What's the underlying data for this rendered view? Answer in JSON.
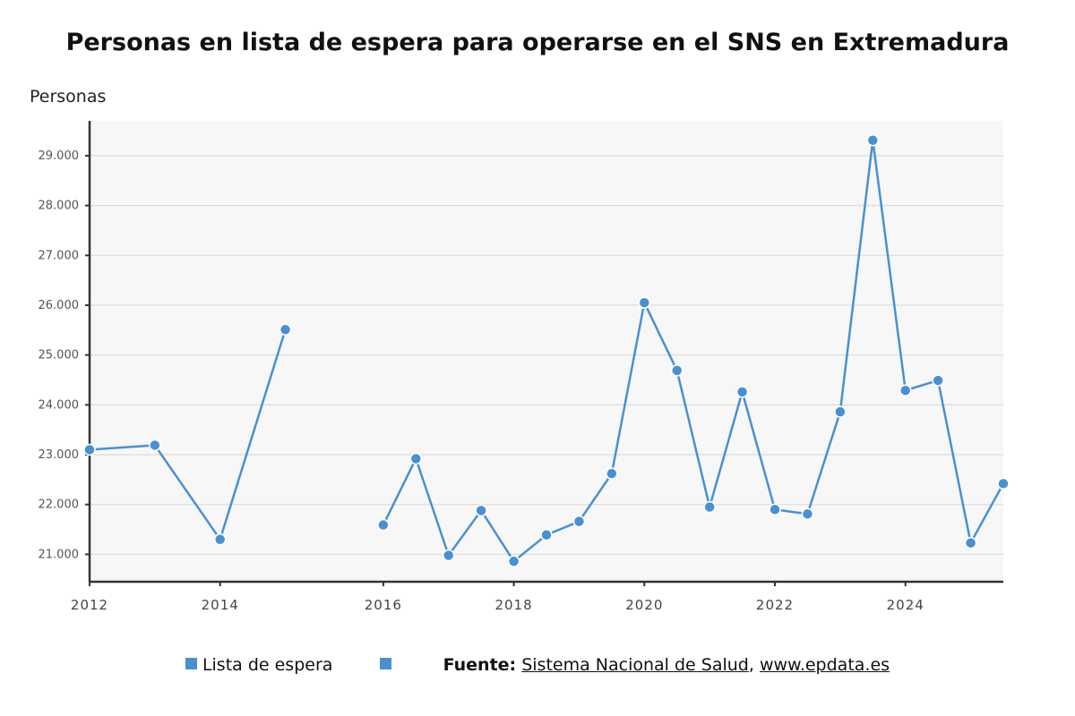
{
  "chart_data": {
    "type": "line",
    "title": "Personas en lista de espera para operarse en el SNS en Extremadura",
    "ylabel": "Personas",
    "xlabel": "",
    "ylim": [
      20450,
      29700
    ],
    "yticks": [
      21000,
      22000,
      23000,
      24000,
      25000,
      26000,
      27000,
      28000,
      29000
    ],
    "ytick_labels": [
      "21.000",
      "22.000",
      "23.000",
      "24.000",
      "25.000",
      "26.000",
      "27.000",
      "28.000",
      "29.000"
    ],
    "grid": true,
    "categories": [
      "2012",
      "",
      "",
      "",
      "2014",
      "",
      "",
      "",
      "",
      "2016",
      "",
      "",
      "",
      "2018",
      "",
      "",
      "",
      "2020",
      "",
      "",
      "",
      "2022",
      "",
      "",
      "",
      "2024",
      "",
      "",
      ""
    ],
    "series": [
      {
        "name": "Lista de espera",
        "color": "#4a90cf",
        "values": [
          23100,
          null,
          23190,
          null,
          21300,
          null,
          25510,
          null,
          null,
          21590,
          22920,
          20980,
          21880,
          20860,
          21390,
          21660,
          22620,
          26050,
          24690,
          21950,
          24260,
          21900,
          21810,
          23860,
          29310,
          24290,
          24490,
          21230,
          22420
        ]
      }
    ],
    "legend_position": "bottom"
  },
  "legend": {
    "items": [
      {
        "label": "Lista de espera",
        "color": "#4a90cf"
      },
      {
        "label": "",
        "color": "#4a90cf"
      }
    ]
  },
  "source": {
    "prefix": "Fuente:",
    "name": "Sistema Nacional de Salud",
    "sep": ",",
    "site": "www.epdata.es"
  },
  "colors": {
    "plot_bg": "#f7f7f7",
    "grid": "#dcdcdc",
    "axis": "#333333"
  }
}
